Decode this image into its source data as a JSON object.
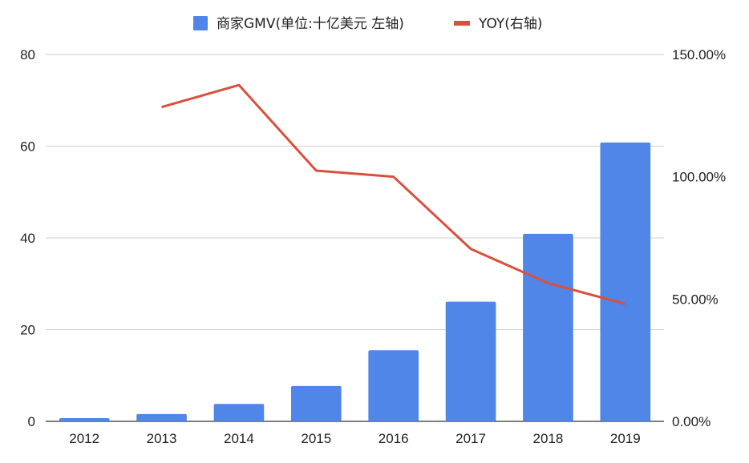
{
  "chart_data": {
    "type": "bar",
    "categories": [
      "2012",
      "2013",
      "2014",
      "2015",
      "2016",
      "2017",
      "2018",
      "2019"
    ],
    "series": [
      {
        "name": "商家GMV(单位:十亿美元  左轴)",
        "type": "bar",
        "axis": "left",
        "color": "#4f86e8",
        "values": [
          0.7,
          1.6,
          3.8,
          7.7,
          15.5,
          26.1,
          40.9,
          60.8
        ]
      },
      {
        "name": "YOY(右轴)",
        "type": "line",
        "axis": "right",
        "color": "#d9503f",
        "values": [
          null,
          1.285,
          1.375,
          1.025,
          1.0,
          0.705,
          0.565,
          0.48
        ]
      }
    ],
    "left_axis": {
      "ylim": [
        0,
        80
      ],
      "ticks": [
        "0",
        "20",
        "40",
        "60",
        "80"
      ]
    },
    "right_axis": {
      "ylim": [
        0,
        1.5
      ],
      "ticks": [
        "0.00%",
        "50.00%",
        "100.00%",
        "150.00%"
      ]
    },
    "grid": true,
    "legend_position": "top-center"
  }
}
